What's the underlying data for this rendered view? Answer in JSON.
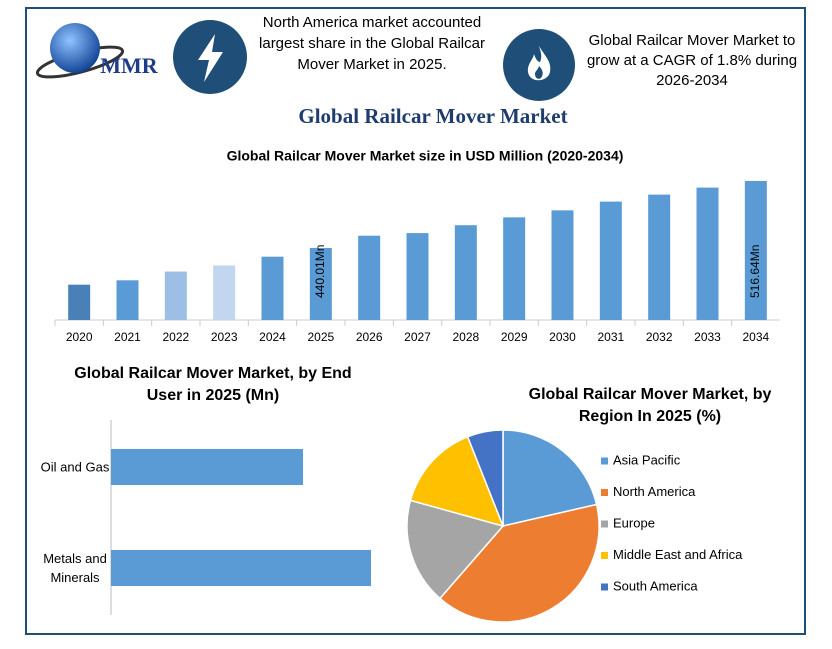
{
  "header": {
    "logo_text": "MMR",
    "left_note": "North America  market accounted largest share in the Global Railcar Mover Market in 2025.",
    "right_note": "Global Railcar Mover Market to grow at a CAGR of 1.8% during 2026-2034",
    "title": "Global Railcar Mover Market"
  },
  "chart_data": [
    {
      "type": "bar",
      "title": "Global Railcar Mover Market size in USD Million (2020-2034)",
      "categories": [
        "2020",
        "2021",
        "2022",
        "2023",
        "2024",
        "2025",
        "2026",
        "2027",
        "2028",
        "2029",
        "2030",
        "2031",
        "2032",
        "2033",
        "2034"
      ],
      "values": [
        398,
        403,
        413,
        420,
        430,
        440.01,
        454,
        457,
        466,
        475,
        483,
        493,
        501,
        509,
        516.64
      ],
      "value_labels": [
        null,
        null,
        null,
        null,
        null,
        "440.01Mn",
        null,
        null,
        null,
        null,
        null,
        null,
        null,
        null,
        "516.64Mn"
      ],
      "colors": [
        "#4a80b8",
        "#5b9bd5",
        "#9dbfe5",
        "#c2d6ef",
        "#5b9bd5",
        "#5b9bd5",
        "#5b9bd5",
        "#5b9bd5",
        "#5b9bd5",
        "#5b9bd5",
        "#5b9bd5",
        "#5b9bd5",
        "#5b9bd5",
        "#5b9bd5",
        "#5b9bd5"
      ],
      "ylim": [
        357.6,
        520
      ]
    },
    {
      "type": "hbar",
      "title": "Global Railcar Mover Market, by End User in 2025 (Mn)",
      "categories": [
        "Oil and Gas",
        "Metals and Minerals"
      ],
      "values": [
        192,
        260
      ],
      "color": "#5b9bd5",
      "xlim": [
        0,
        300
      ]
    },
    {
      "type": "pie",
      "title": "Global Railcar Mover Market, by Region In 2025 (%)",
      "categories": [
        "Asia Pacific",
        "North America",
        "Europe",
        "Middle East and Africa",
        "South America"
      ],
      "values": [
        21.4,
        40,
        17.9,
        14.7,
        6
      ],
      "colors": [
        "#5b9bd5",
        "#ed7d31",
        "#a5a5a5",
        "#ffc000",
        "#4472c4"
      ],
      "legend": "right"
    }
  ]
}
